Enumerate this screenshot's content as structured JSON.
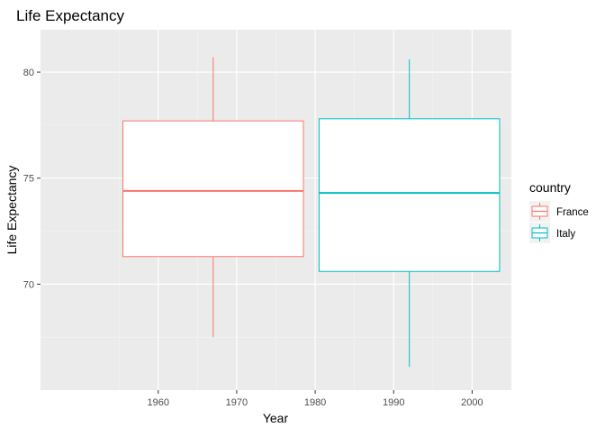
{
  "chart_data": {
    "type": "boxplot",
    "title": "Life Expectancy",
    "xlabel": "Year",
    "ylabel": "Life Expectancy",
    "xlim": [
      1945,
      2005
    ],
    "ylim": [
      65,
      82
    ],
    "xticks": [
      1960,
      1970,
      1980,
      1990,
      2000
    ],
    "yticks": [
      70,
      75,
      80
    ],
    "grid": true,
    "legend": {
      "title": "country",
      "position": "right"
    },
    "series": [
      {
        "name": "France",
        "color": "#F8766D",
        "x_center": 1967,
        "x_range": [
          1955.5,
          1978.5
        ],
        "whisker_low": 67.5,
        "q1": 71.3,
        "median": 74.4,
        "q3": 77.7,
        "whisker_high": 80.7
      },
      {
        "name": "Italy",
        "color": "#00BFC4",
        "x_center": 1992,
        "x_range": [
          1980.5,
          2003.5
        ],
        "whisker_low": 66.1,
        "q1": 70.6,
        "median": 74.3,
        "q3": 77.8,
        "whisker_high": 80.6
      }
    ]
  }
}
